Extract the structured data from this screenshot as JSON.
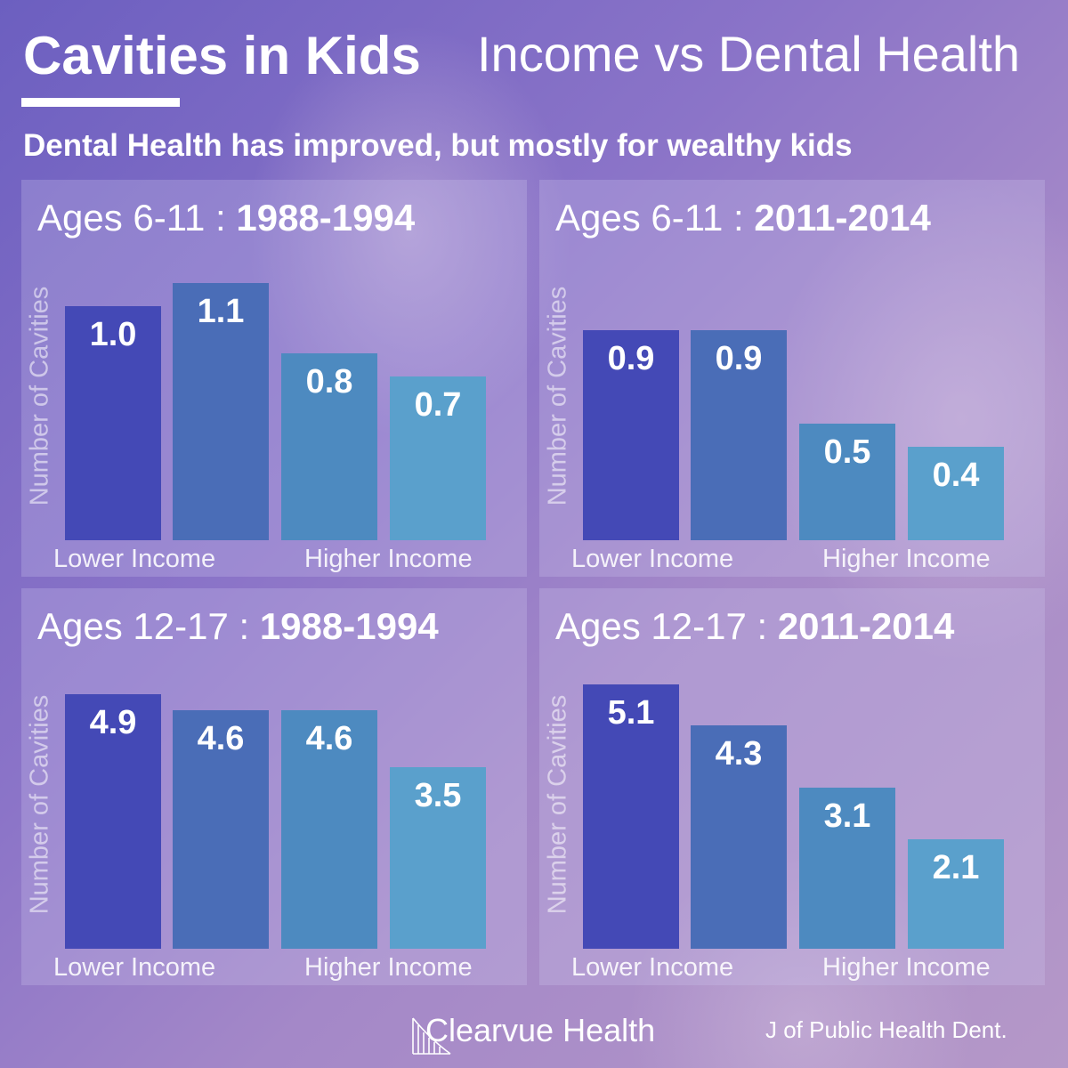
{
  "header": {
    "title": "Cavities in Kids",
    "right_title": "Income vs Dental Health",
    "subtitle": "Dental Health has improved, but mostly for wealthy kids"
  },
  "footer": {
    "brand": "Clearvue Health",
    "source": "J of Public Health Dent."
  },
  "colors": {
    "bars": [
      "#4449b6",
      "#4a6db7",
      "#4d8ac0",
      "#5aa0cc"
    ],
    "background_start": "#6c5fc0",
    "background_end": "#b598c8"
  },
  "chart_data": [
    {
      "type": "bar",
      "title_prefix": "Ages 6-11 : ",
      "title_years": "1988-1994",
      "ylabel": "Number of Cavities",
      "xlabel_left": "Lower Income",
      "xlabel_right": "Higher Income",
      "values": [
        1.0,
        1.1,
        0.8,
        0.7
      ],
      "value_labels": [
        "1.0",
        "1.1",
        "0.8",
        "0.7"
      ],
      "ymax": 1.2
    },
    {
      "type": "bar",
      "title_prefix": "Ages 6-11 : ",
      "title_years": "2011-2014",
      "ylabel": "Number of Cavities",
      "xlabel_left": "Lower Income",
      "xlabel_right": "Higher Income",
      "values": [
        0.9,
        0.9,
        0.5,
        0.4
      ],
      "value_labels": [
        "0.9",
        "0.9",
        "0.5",
        "0.4"
      ],
      "ymax": 1.2
    },
    {
      "type": "bar",
      "title_prefix": "Ages 12-17 : ",
      "title_years": "1988-1994",
      "ylabel": "Number of Cavities",
      "xlabel_left": "Lower Income",
      "xlabel_right": "Higher Income",
      "values": [
        4.9,
        4.6,
        4.6,
        3.5
      ],
      "value_labels": [
        "4.9",
        "4.6",
        "4.6",
        "3.5"
      ],
      "ymax": 5.4
    },
    {
      "type": "bar",
      "title_prefix": "Ages 12-17 : ",
      "title_years": "2011-2014",
      "ylabel": "Number of Cavities",
      "xlabel_left": "Lower Income",
      "xlabel_right": "Higher Income",
      "values": [
        5.1,
        4.3,
        3.1,
        2.1
      ],
      "value_labels": [
        "5.1",
        "4.3",
        "3.1",
        "2.1"
      ],
      "ymax": 5.4
    }
  ]
}
